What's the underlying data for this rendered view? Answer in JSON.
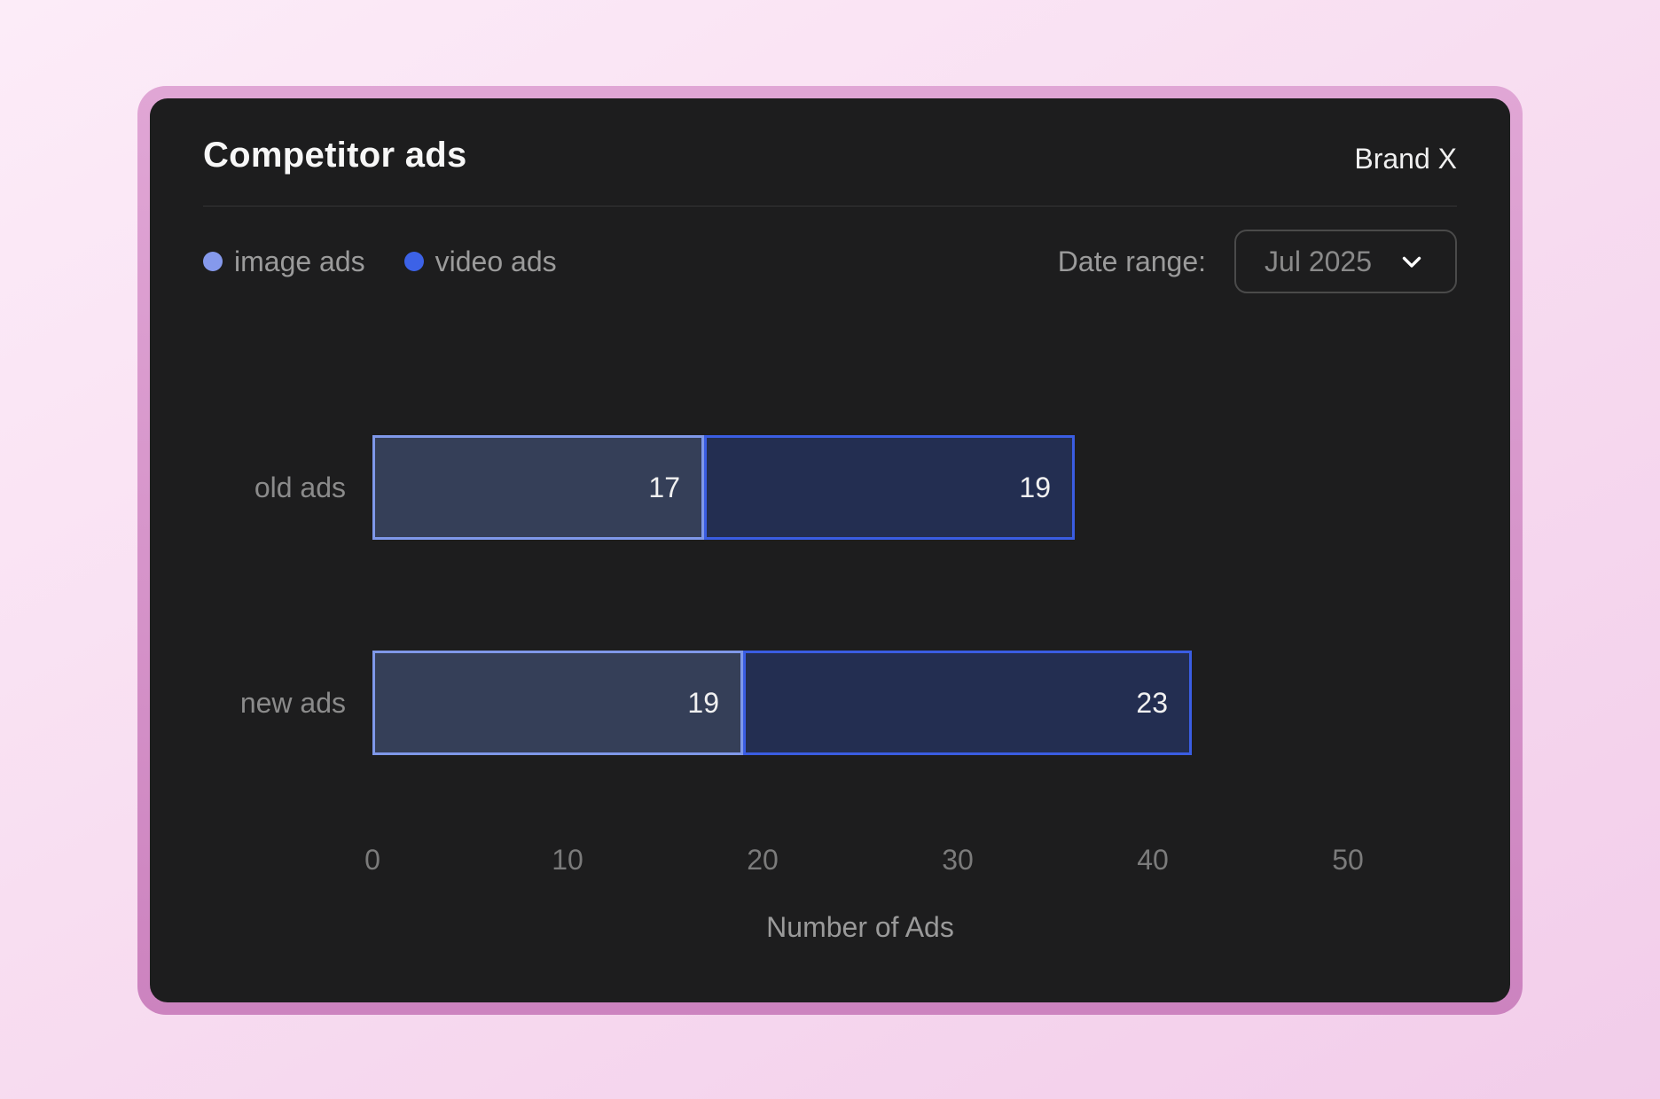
{
  "card": {
    "title": "Competitor ads",
    "brand": "Brand X",
    "background": "#1d1d1e",
    "frame_border_from": "#e0a6d5",
    "frame_border_to": "#cc83bf"
  },
  "legend": [
    {
      "label": "image ads",
      "color": "#8599ec"
    },
    {
      "label": "video ads",
      "color": "#3c62e7"
    }
  ],
  "date_range": {
    "label": "Date range:",
    "value": "Jul 2025"
  },
  "chart_data": {
    "type": "bar",
    "orientation": "horizontal",
    "stacked": true,
    "categories": [
      "old ads",
      "new ads"
    ],
    "series": [
      {
        "name": "image ads",
        "values": [
          17,
          19
        ],
        "fill": "#353f58",
        "border": "#7f98e9"
      },
      {
        "name": "video ads",
        "values": [
          19,
          23
        ],
        "fill": "#232e51",
        "border": "#3a5de2"
      }
    ],
    "totals": [
      36,
      42
    ],
    "xlabel": "Number of Ads",
    "xlim": [
      0,
      50
    ],
    "xticks": [
      0,
      10,
      20,
      30,
      40,
      50
    ],
    "value_labels": "inside-end",
    "legend_position": "top-left",
    "grid": false
  }
}
